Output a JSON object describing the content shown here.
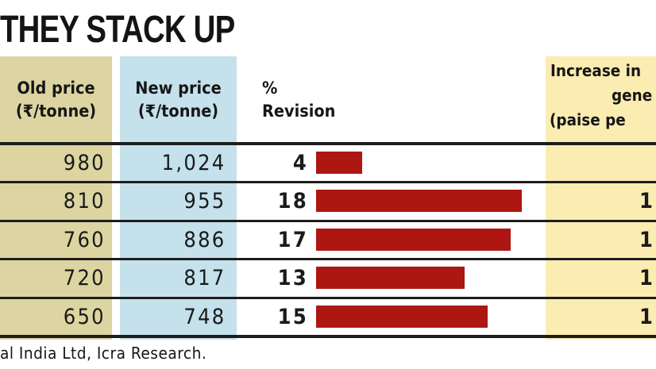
{
  "title": "THEY STACK UP",
  "header": {
    "old_price": [
      "Old price",
      "(₹/tonne)"
    ],
    "new_price": [
      "New price",
      "(₹/tonne)"
    ],
    "revision": [
      "%",
      "Revision"
    ],
    "increase": [
      "Increase in",
      "gene",
      "(paise pe"
    ]
  },
  "rows": [
    {
      "old_price": "980",
      "new_price": "1,024",
      "pct_revision": "4",
      "pct_value": 4,
      "increase_visible": ""
    },
    {
      "old_price": "810",
      "new_price": "955",
      "pct_revision": "18",
      "pct_value": 18,
      "increase_visible": "1"
    },
    {
      "old_price": "760",
      "new_price": "886",
      "pct_revision": "17",
      "pct_value": 17,
      "increase_visible": "1"
    },
    {
      "old_price": "720",
      "new_price": "817",
      "pct_revision": "13",
      "pct_value": 13,
      "increase_visible": "1"
    },
    {
      "old_price": "650",
      "new_price": "748",
      "pct_revision": "15",
      "pct_value": 15,
      "increase_visible": "1"
    }
  ],
  "source_note": "al India Ltd, Icra Research.",
  "colors": {
    "old_price_bg": "#dcd5a1",
    "new_price_bg": "#c4e1ec",
    "increase_bg": "#fbecb1",
    "bar": "#ae1612",
    "rule": "#1d1d1d"
  },
  "chart_data": {
    "type": "bar",
    "title": "THEY STACK UP",
    "orientation": "horizontal",
    "categories": [
      "",
      "",
      "",
      "",
      ""
    ],
    "categories_cropped": true,
    "series": [
      {
        "name": "Old price (₹/tonne)",
        "values": [
          980,
          810,
          760,
          720,
          650
        ]
      },
      {
        "name": "New price (₹/tonne)",
        "values": [
          1024,
          955,
          886,
          817,
          748
        ]
      },
      {
        "name": "% Revision",
        "values": [
          4,
          18,
          17,
          13,
          15
        ]
      }
    ],
    "bars_shown_for_series": "% Revision",
    "bar_color": "#ae1612",
    "xlim": [
      0,
      20
    ],
    "grid": false,
    "legend": false,
    "source_note_visible": "al India Ltd, Icra Research."
  }
}
